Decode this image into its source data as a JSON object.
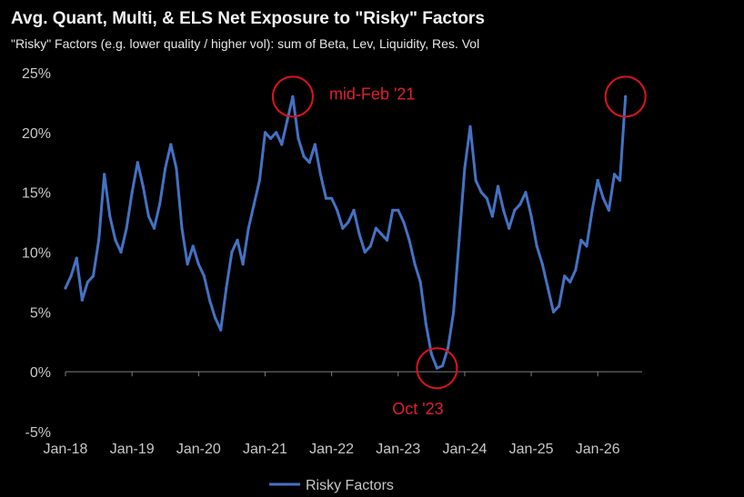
{
  "title": "Avg. Quant, Multi, & ELS Net Exposure to \"Risky\" Factors",
  "subtitle": "\"Risky\" Factors (e.g. lower quality / higher vol): sum of Beta, Lev, Liquidity, Res. Vol",
  "colors": {
    "background": "#000000",
    "line": "#4472c4",
    "annotation": "#d9141e",
    "axis": "#7f7f7f",
    "text": "#c8c8c8"
  },
  "chart_data": {
    "type": "line",
    "title": "Avg. Quant, Multi, & ELS Net Exposure to \"Risky\" Factors",
    "subtitle": "\"Risky\" Factors (e.g. lower quality / higher vol): sum of Beta, Lev, Liquidity, Res. Vol",
    "xlabel": "",
    "ylabel": "",
    "xlim": [
      "2018-01",
      "2026-09"
    ],
    "ylim": [
      -5,
      25
    ],
    "y_ticks": [
      "25%",
      "20%",
      "15%",
      "10%",
      "5%",
      "0%",
      "-5%"
    ],
    "y_tick_values": [
      25,
      20,
      15,
      10,
      5,
      0,
      -5
    ],
    "x_ticks": [
      "Jan-18",
      "Jan-19",
      "Jan-20",
      "Jan-21",
      "Jan-22",
      "Jan-23",
      "Jan-24",
      "Jan-25",
      "Jan-26"
    ],
    "x_tick_values": [
      "2018-01",
      "2019-01",
      "2020-01",
      "2021-01",
      "2022-01",
      "2023-01",
      "2024-01",
      "2025-01",
      "2026-01"
    ],
    "grid": false,
    "legend": "bottom-center",
    "series": [
      {
        "name": "Risky Factors",
        "x": [
          "2018-01",
          "2018-02",
          "2018-03",
          "2018-04",
          "2018-05",
          "2018-06",
          "2018-07",
          "2018-08",
          "2018-09",
          "2018-10",
          "2018-11",
          "2018-12",
          "2019-01",
          "2019-02",
          "2019-03",
          "2019-04",
          "2019-05",
          "2019-06",
          "2019-07",
          "2019-08",
          "2019-09",
          "2019-10",
          "2019-11",
          "2019-12",
          "2020-01",
          "2020-02",
          "2020-03",
          "2020-04",
          "2020-05",
          "2020-06",
          "2020-07",
          "2020-08",
          "2020-09",
          "2020-10",
          "2020-11",
          "2020-12",
          "2021-01",
          "2021-02",
          "2021-03",
          "2021-04",
          "2021-05",
          "2021-06",
          "2021-07",
          "2021-08",
          "2021-09",
          "2021-10",
          "2021-11",
          "2021-12",
          "2022-01",
          "2022-02",
          "2022-03",
          "2022-04",
          "2022-05",
          "2022-06",
          "2022-07",
          "2022-08",
          "2022-09",
          "2022-10",
          "2022-11",
          "2022-12",
          "2023-01",
          "2023-02",
          "2023-03",
          "2023-04",
          "2023-05",
          "2023-06",
          "2023-07",
          "2023-08",
          "2023-09",
          "2023-10",
          "2023-11",
          "2023-12",
          "2024-01",
          "2024-02",
          "2024-03",
          "2024-04",
          "2024-05",
          "2024-06",
          "2024-07",
          "2024-08",
          "2024-09",
          "2024-10",
          "2024-11",
          "2024-12",
          "2025-01",
          "2025-02",
          "2025-03",
          "2025-04",
          "2025-05",
          "2025-06",
          "2025-07",
          "2025-08",
          "2025-09",
          "2025-10",
          "2025-11",
          "2025-12",
          "2026-01",
          "2026-02",
          "2026-03",
          "2026-04",
          "2026-05",
          "2026-06"
        ],
        "values": [
          7.0,
          8.0,
          9.5,
          6.0,
          7.5,
          8.0,
          11.0,
          16.5,
          13.0,
          11.0,
          10.0,
          12.0,
          15.0,
          17.5,
          15.5,
          13.0,
          12.0,
          14.0,
          17.0,
          19.0,
          17.0,
          12.0,
          9.0,
          10.5,
          9.0,
          8.0,
          6.0,
          4.5,
          3.5,
          7.0,
          10.0,
          11.0,
          9.0,
          12.0,
          14.0,
          16.0,
          20.0,
          19.5,
          20.0,
          19.0,
          21.0,
          23.0,
          19.5,
          18.0,
          17.5,
          19.0,
          16.5,
          14.5,
          14.5,
          13.5,
          12.0,
          12.5,
          13.5,
          11.5,
          10.0,
          10.5,
          12.0,
          11.5,
          11.0,
          13.5,
          13.5,
          12.5,
          11.0,
          9.0,
          7.5,
          4.0,
          1.5,
          0.3,
          0.5,
          2.0,
          5.0,
          11.0,
          17.0,
          20.5,
          16.0,
          15.0,
          14.5,
          13.0,
          15.5,
          13.5,
          12.0,
          13.5,
          14.0,
          15.0,
          13.0,
          10.5,
          9.0,
          7.0,
          5.0,
          5.5,
          8.0,
          7.5,
          8.5,
          11.0,
          10.5,
          13.5,
          16.0,
          14.5,
          13.5,
          16.5,
          16.0,
          23.0
        ]
      }
    ],
    "annotations": [
      {
        "label": "mid-Feb '21",
        "x": "2021-06",
        "y": 23.0
      },
      {
        "label": "Oct '23",
        "x": "2023-08",
        "y": 0.3
      },
      {
        "label": "",
        "x": "2026-06",
        "y": 23.0
      }
    ]
  }
}
